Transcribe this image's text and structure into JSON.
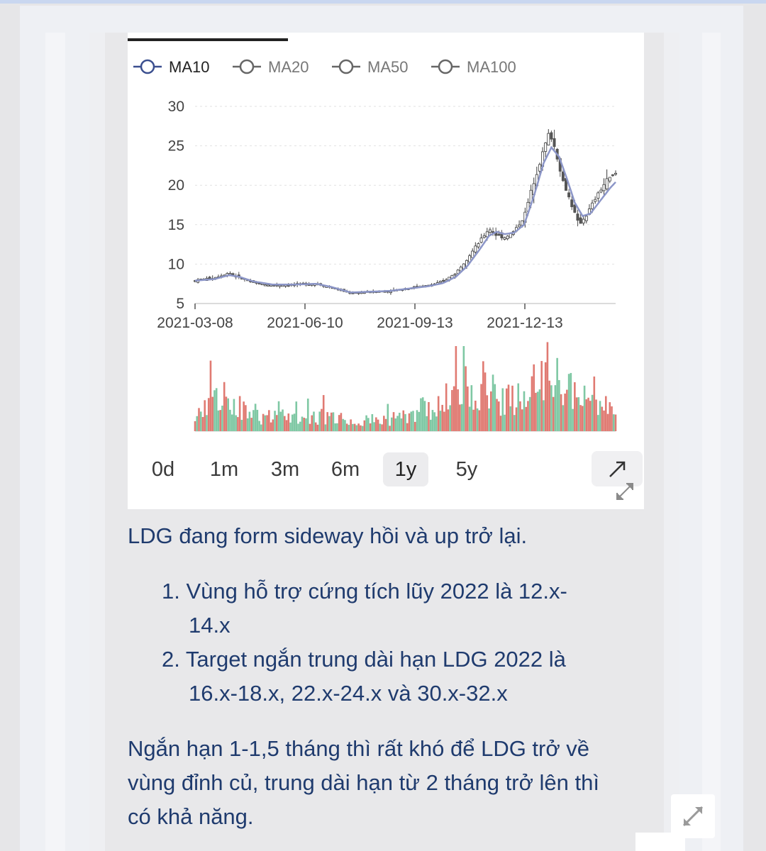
{
  "chart_data": {
    "type": "candlestick-line",
    "legend": [
      "MA10",
      "MA20",
      "MA50",
      "MA100"
    ],
    "active_legend": "MA10",
    "y_ticks": [
      30,
      25,
      20,
      15,
      10,
      5
    ],
    "ylim": [
      5,
      30
    ],
    "x_ticks": [
      "2021-03-08",
      "2021-06-10",
      "2021-09-13",
      "2021-12-13"
    ],
    "price_keypoints": [
      [
        0,
        7.9
      ],
      [
        20,
        8.3
      ],
      [
        35,
        8.9
      ],
      [
        45,
        8.3
      ],
      [
        60,
        7.6
      ],
      [
        80,
        7.3
      ],
      [
        100,
        7.4
      ],
      [
        125,
        7.5
      ],
      [
        140,
        7.0
      ],
      [
        160,
        6.3
      ],
      [
        180,
        6.5
      ],
      [
        200,
        6.6
      ],
      [
        220,
        7.0
      ],
      [
        240,
        7.3
      ],
      [
        255,
        7.8
      ],
      [
        268,
        8.9
      ],
      [
        280,
        10.8
      ],
      [
        292,
        12.8
      ],
      [
        302,
        14.5
      ],
      [
        310,
        13.6
      ],
      [
        318,
        13.4
      ],
      [
        328,
        14.2
      ],
      [
        338,
        16.0
      ],
      [
        348,
        20.5
      ],
      [
        358,
        24.5
      ],
      [
        364,
        26.8
      ],
      [
        370,
        24.5
      ],
      [
        378,
        20.5
      ],
      [
        386,
        17.8
      ],
      [
        394,
        15.0
      ],
      [
        402,
        16.2
      ],
      [
        412,
        18.5
      ],
      [
        422,
        20.5
      ],
      [
        432,
        21.5
      ]
    ],
    "ma10_keypoints": [
      [
        0,
        7.9
      ],
      [
        20,
        8.1
      ],
      [
        35,
        8.6
      ],
      [
        45,
        8.4
      ],
      [
        60,
        7.8
      ],
      [
        80,
        7.4
      ],
      [
        100,
        7.4
      ],
      [
        125,
        7.5
      ],
      [
        140,
        7.1
      ],
      [
        160,
        6.4
      ],
      [
        180,
        6.5
      ],
      [
        200,
        6.6
      ],
      [
        220,
        6.9
      ],
      [
        240,
        7.2
      ],
      [
        255,
        7.6
      ],
      [
        268,
        8.4
      ],
      [
        280,
        9.8
      ],
      [
        292,
        11.8
      ],
      [
        302,
        13.6
      ],
      [
        310,
        14.1
      ],
      [
        318,
        13.8
      ],
      [
        328,
        14.0
      ],
      [
        338,
        15.0
      ],
      [
        348,
        18.6
      ],
      [
        358,
        22.8
      ],
      [
        366,
        24.8
      ],
      [
        374,
        23.6
      ],
      [
        382,
        20.8
      ],
      [
        390,
        17.8
      ],
      [
        398,
        16.1
      ],
      [
        406,
        16.4
      ],
      [
        416,
        18.0
      ],
      [
        426,
        19.6
      ],
      [
        432,
        20.4
      ]
    ],
    "volume_keypoints": [
      [
        0,
        0.3
      ],
      [
        20,
        0.42
      ],
      [
        35,
        0.5
      ],
      [
        45,
        0.35
      ],
      [
        60,
        0.22
      ],
      [
        100,
        0.2
      ],
      [
        140,
        0.22
      ],
      [
        160,
        0.14
      ],
      [
        200,
        0.18
      ],
      [
        230,
        0.25
      ],
      [
        250,
        0.38
      ],
      [
        268,
        0.55
      ],
      [
        285,
        0.72
      ],
      [
        300,
        0.68
      ],
      [
        318,
        0.45
      ],
      [
        340,
        0.5
      ],
      [
        358,
        0.8
      ],
      [
        366,
        0.9
      ],
      [
        376,
        0.7
      ],
      [
        392,
        0.48
      ],
      [
        410,
        0.42
      ],
      [
        432,
        0.35
      ]
    ]
  },
  "range_buttons": [
    {
      "label": "0d",
      "active": false
    },
    {
      "label": "1m",
      "active": false
    },
    {
      "label": "3m",
      "active": false
    },
    {
      "label": "6m",
      "active": false
    },
    {
      "label": "1y",
      "active": true
    },
    {
      "label": "5y",
      "active": false
    }
  ],
  "post": {
    "intro": "LDG đang form sideway hồi và up trở lại.",
    "item1_line1": "1. Vùng hỗ trợ cứng tích lũy 2022 là 12.x-",
    "item1_line2": "14.x",
    "item2_line1": "2. Target ngắn trung dài hạn LDG 2022 là",
    "item2_line2": "16.x-18.x, 22.x-24.x và 30.x-32.x",
    "outro_line1": "Ngắn hạn 1-1,5 tháng thì rất khó để LDG trở về",
    "outro_line2": "vùng đỉnh củ, trung dài hạn từ 2 tháng trở lên thì",
    "outro_line3": "có khả năng."
  },
  "colors": {
    "ma10_line": "#8c96c8",
    "candle_up": "#7fc8a4",
    "candle_down": "#e07a72",
    "text": "#1f3b6e"
  }
}
